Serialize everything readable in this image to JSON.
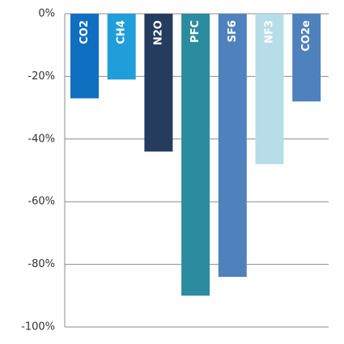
{
  "chart_data": {
    "type": "bar",
    "categories": [
      "CO2",
      "CH4",
      "N2O",
      "PFC",
      "SF6",
      "NF3",
      "CO2e"
    ],
    "values": [
      -27,
      -21,
      -44,
      -90,
      -84,
      -48,
      -28
    ],
    "colors": [
      "#0f6fc1",
      "#1f9ed9",
      "#253c5f",
      "#2b8ca0",
      "#4f81bd",
      "#b7dde8",
      "#4f81bd"
    ],
    "label_colors": [
      "#ffffff",
      "#ffffff",
      "#ffffff",
      "#ffffff",
      "#ffffff",
      "#ffffff",
      "#ffffff"
    ],
    "yticks": [
      0,
      -20,
      -40,
      -60,
      -80,
      -100
    ],
    "ytick_labels": [
      "0%",
      "-20%",
      "-40%",
      "-60%",
      "-80%",
      "-100%"
    ],
    "ylim": [
      -100,
      0
    ],
    "grid": true,
    "title": "",
    "xlabel": "",
    "ylabel": ""
  }
}
